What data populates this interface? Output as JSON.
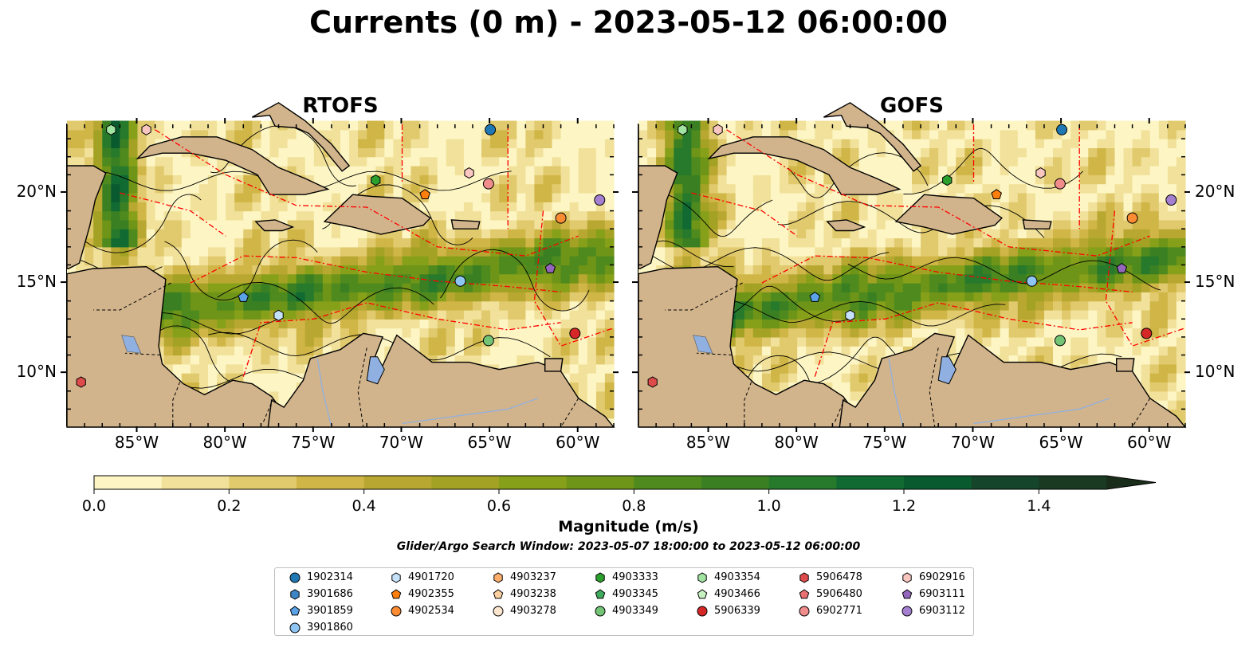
{
  "title": "Currents (0 m) - 2023-05-12 06:00:00",
  "panels": [
    {
      "title": "RTOFS"
    },
    {
      "title": "GOFS"
    }
  ],
  "axes": {
    "x_ticks": [
      "85°W",
      "80°W",
      "75°W",
      "70°W",
      "65°W",
      "60°W"
    ],
    "y_ticks": [
      "20°N",
      "15°N",
      "10°N"
    ]
  },
  "colorbar": {
    "label": "Magnitude (m/s)",
    "ticks": [
      "0.0",
      "0.2",
      "0.4",
      "0.6",
      "0.8",
      "1.0",
      "1.2",
      "1.4"
    ],
    "colors": [
      "#fdf6c4",
      "#f1e19a",
      "#e1ca6d",
      "#d0b547",
      "#b8a832",
      "#a3a224",
      "#87a019",
      "#6e9418",
      "#4e8a1d",
      "#3a8023",
      "#277a2c",
      "#106a32",
      "#0a5a2f",
      "#15452a",
      "#1b3a22",
      "#1a2d1a"
    ]
  },
  "search_window": "Glider/Argo Search Window: 2023-05-07 18:00:00 to 2023-05-12 06:00:00",
  "colors": {
    "land": "#d2b48c",
    "lake": "#8fb0e0",
    "eez": "#ff0000"
  },
  "legend": [
    {
      "id": "1902314",
      "marker": "circle",
      "color": "#1f77b4"
    },
    {
      "id": "3901686",
      "marker": "hexagon",
      "color": "#3d85c6"
    },
    {
      "id": "3901859",
      "marker": "pentagon",
      "color": "#5ba3e6"
    },
    {
      "id": "3901860",
      "marker": "circle",
      "color": "#8ec5f2"
    },
    {
      "id": "4901720",
      "marker": "hexagon",
      "color": "#c6e2fb"
    },
    {
      "id": "4902355",
      "marker": "pentagon",
      "color": "#ff7f0e"
    },
    {
      "id": "4902534",
      "marker": "circle",
      "color": "#fb8c34"
    },
    {
      "id": "4903237",
      "marker": "hexagon",
      "color": "#fdae6b"
    },
    {
      "id": "4903238",
      "marker": "pentagon",
      "color": "#fdd0a2"
    },
    {
      "id": "4903278",
      "marker": "circle",
      "color": "#fee6ce"
    },
    {
      "id": "4903333",
      "marker": "hexagon",
      "color": "#2ca02c"
    },
    {
      "id": "4903345",
      "marker": "pentagon",
      "color": "#41ab5d"
    },
    {
      "id": "4903349",
      "marker": "circle",
      "color": "#74c476"
    },
    {
      "id": "4903354",
      "marker": "hexagon",
      "color": "#a1e3a0"
    },
    {
      "id": "4903466",
      "marker": "pentagon",
      "color": "#c7f2c0"
    },
    {
      "id": "5906339",
      "marker": "circle",
      "color": "#d62728"
    },
    {
      "id": "5906478",
      "marker": "hexagon",
      "color": "#de4b4b"
    },
    {
      "id": "5906480",
      "marker": "pentagon",
      "color": "#e87070"
    },
    {
      "id": "6902771",
      "marker": "circle",
      "color": "#f08c8c"
    },
    {
      "id": "6902916",
      "marker": "hexagon",
      "color": "#f9c6c0"
    },
    {
      "id": "6903111",
      "marker": "pentagon",
      "color": "#9467bd"
    },
    {
      "id": "6903112",
      "marker": "circle",
      "color": "#a57fd0"
    }
  ],
  "floats": [
    {
      "id": "1902314",
      "lon": -65.0,
      "lat": 23.5
    },
    {
      "id": "4903354",
      "lon": -86.5,
      "lat": 23.5
    },
    {
      "id": "6902916",
      "lon": -84.5,
      "lat": 23.5
    },
    {
      "id": "4903333",
      "lon": -71.5,
      "lat": 20.7
    },
    {
      "id": "4902355",
      "lon": -68.7,
      "lat": 19.9
    },
    {
      "id": "6902916",
      "lon": -66.2,
      "lat": 21.1
    },
    {
      "id": "6902771",
      "lon": -65.1,
      "lat": 20.5
    },
    {
      "id": "4902534",
      "lon": -61.0,
      "lat": 18.6
    },
    {
      "id": "6903112",
      "lon": -58.8,
      "lat": 19.6
    },
    {
      "id": "6903111",
      "lon": -61.6,
      "lat": 15.8
    },
    {
      "id": "3901860",
      "lon": -66.7,
      "lat": 15.1
    },
    {
      "id": "3901859",
      "lon": -79.0,
      "lat": 14.2
    },
    {
      "id": "4901720",
      "lon": -77.0,
      "lat": 13.2
    },
    {
      "id": "4903349",
      "lon": -65.1,
      "lat": 11.8
    },
    {
      "id": "5906339",
      "lon": -60.2,
      "lat": 12.2
    },
    {
      "id": "5906478",
      "lon": -88.2,
      "lat": 9.5
    }
  ]
}
